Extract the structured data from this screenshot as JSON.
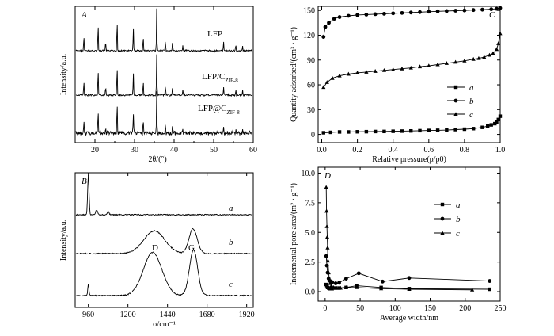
{
  "chart_data": [
    {
      "type": "line",
      "panel": "A",
      "xlabel": "2θ/(°)",
      "ylabel": "Intensity/a.u.",
      "xlim": [
        15,
        60
      ],
      "x_ticks": [
        "20",
        "30",
        "40",
        "50",
        "60"
      ],
      "series": [
        {
          "name": "LFP",
          "label_parts": [
            "LFP",
            ""
          ],
          "peaks": [
            [
              17.2,
              0.35
            ],
            [
              20.8,
              0.65
            ],
            [
              22.7,
              0.2
            ],
            [
              25.6,
              0.75
            ],
            [
              29.7,
              0.55
            ],
            [
              32.2,
              0.35
            ],
            [
              35.6,
              1.0
            ],
            [
              37.8,
              0.25
            ],
            [
              39.6,
              0.2
            ],
            [
              42.2,
              0.12
            ],
            [
              52.5,
              0.2
            ],
            [
              55.6,
              0.15
            ],
            [
              57.3,
              0.12
            ]
          ]
        },
        {
          "name": "LFP/C_ZIF-8",
          "label_parts": [
            "LFP/C",
            "ZIF-8"
          ],
          "peaks": [
            [
              17.2,
              0.35
            ],
            [
              20.8,
              0.65
            ],
            [
              22.7,
              0.2
            ],
            [
              25.6,
              0.75
            ],
            [
              29.7,
              0.55
            ],
            [
              32.2,
              0.35
            ],
            [
              35.6,
              1.0
            ],
            [
              37.8,
              0.25
            ],
            [
              39.6,
              0.2
            ],
            [
              42.2,
              0.12
            ],
            [
              52.5,
              0.2
            ],
            [
              55.6,
              0.15
            ],
            [
              57.3,
              0.12
            ]
          ]
        },
        {
          "name": "LFP@C_ZIF-8",
          "label_parts": [
            "LFP@C",
            "ZIF-8"
          ],
          "peaks": [
            [
              17.2,
              0.3
            ],
            [
              20.8,
              0.55
            ],
            [
              22.7,
              0.18
            ],
            [
              25.6,
              0.7
            ],
            [
              29.7,
              0.5
            ],
            [
              32.2,
              0.3
            ],
            [
              35.6,
              0.95
            ],
            [
              37.8,
              0.22
            ],
            [
              39.6,
              0.18
            ],
            [
              42.2,
              0.1
            ],
            [
              52.5,
              0.18
            ],
            [
              55.6,
              0.12
            ],
            [
              57.3,
              0.1
            ]
          ]
        }
      ]
    },
    {
      "type": "line",
      "panel": "B",
      "xlabel": "σ/cm⁻¹",
      "ylabel": "Intensity/a.u.",
      "xlim": [
        880,
        1960
      ],
      "x_ticks": [
        "960",
        "1200",
        "1440",
        "1680",
        "1920"
      ],
      "peak_labels": [
        "D",
        "G"
      ],
      "series": [
        {
          "name": "a",
          "peaks": [
            [
              960,
              1.0,
              6
            ],
            [
              1010,
              0.12,
              8
            ],
            [
              1080,
              0.08,
              8
            ]
          ]
        },
        {
          "name": "b",
          "peaks": [
            [
              1360,
              0.55,
              90
            ],
            [
              1595,
              0.6,
              35
            ]
          ]
        },
        {
          "name": "c",
          "peaks": [
            [
              960,
              0.22,
              5
            ],
            [
              1350,
              0.8,
              80
            ],
            [
              1598,
              0.85,
              35
            ]
          ]
        }
      ]
    },
    {
      "type": "line",
      "panel": "C",
      "xlabel": "Relative pressure(p/p0)",
      "ylabel": "Quantity adsorbed/(cm³ · g⁻¹)",
      "xlim": [
        0,
        1.0
      ],
      "ylim": [
        -10,
        155
      ],
      "x_ticks": [
        "0.0",
        "0.2",
        "0.4",
        "0.6",
        "0.8",
        "1.0"
      ],
      "y_ticks": [
        "0",
        "30",
        "60",
        "90",
        "120",
        "150"
      ],
      "series": [
        {
          "name": "a",
          "marker": "square",
          "x": [
            0.01,
            0.05,
            0.1,
            0.15,
            0.2,
            0.25,
            0.3,
            0.35,
            0.4,
            0.45,
            0.5,
            0.55,
            0.6,
            0.65,
            0.7,
            0.75,
            0.8,
            0.85,
            0.9,
            0.93,
            0.95,
            0.97,
            0.98,
            0.99,
            1.0
          ],
          "y": [
            2,
            2.5,
            3,
            3,
            3.2,
            3.3,
            3.5,
            3.6,
            3.8,
            4,
            4.2,
            4.5,
            4.8,
            5,
            5.3,
            5.8,
            6.3,
            7,
            8.5,
            10,
            11.5,
            13,
            15,
            18,
            22
          ]
        },
        {
          "name": "b",
          "marker": "circle",
          "x": [
            0.01,
            0.02,
            0.04,
            0.07,
            0.1,
            0.15,
            0.2,
            0.25,
            0.3,
            0.35,
            0.4,
            0.45,
            0.5,
            0.55,
            0.6,
            0.65,
            0.7,
            0.75,
            0.8,
            0.85,
            0.9,
            0.95,
            0.98,
            1.0
          ],
          "y": [
            118,
            130,
            135,
            140,
            142,
            143.5,
            144.5,
            145,
            145.5,
            146,
            146.5,
            147,
            147.5,
            148,
            148.5,
            149,
            149.3,
            149.7,
            150,
            150.5,
            151,
            151.5,
            152,
            153
          ]
        },
        {
          "name": "c",
          "marker": "triangle",
          "x": [
            0.01,
            0.03,
            0.06,
            0.1,
            0.15,
            0.2,
            0.25,
            0.3,
            0.35,
            0.4,
            0.45,
            0.5,
            0.55,
            0.6,
            0.65,
            0.7,
            0.75,
            0.8,
            0.85,
            0.88,
            0.91,
            0.94,
            0.96,
            0.98,
            0.99,
            1.0
          ],
          "y": [
            57,
            63,
            68,
            71,
            73,
            74.5,
            75.5,
            76.5,
            77.5,
            78.5,
            79.5,
            80.5,
            82,
            83,
            84.5,
            86,
            87.5,
            89,
            91,
            92,
            93.5,
            96,
            98,
            103,
            110,
            122
          ]
        }
      ]
    },
    {
      "type": "line",
      "panel": "D",
      "xlabel": "Average width/nm",
      "ylabel": "Incremental pore area/(m² · g⁻¹)",
      "xlim": [
        -10,
        250
      ],
      "ylim": [
        -0.8,
        10.5
      ],
      "x_ticks": [
        "0",
        "50",
        "100",
        "150",
        "200",
        "250"
      ],
      "y_ticks": [
        "0.0",
        "2.5",
        "5.0",
        "7.5",
        "10.0"
      ],
      "series": [
        {
          "name": "a",
          "marker": "square",
          "x": [
            1.5,
            2.5,
            3.5,
            5,
            7,
            10,
            15,
            20,
            30,
            45,
            80,
            120,
            235
          ],
          "y": [
            0.6,
            0.5,
            0.35,
            0.3,
            0.25,
            0.25,
            0.3,
            0.3,
            0.35,
            0.5,
            0.35,
            0.25,
            0.2
          ]
        },
        {
          "name": "b",
          "marker": "circle",
          "x": [
            1.5,
            2.5,
            3.5,
            5,
            7,
            10,
            15,
            20,
            30,
            48,
            82,
            120,
            235
          ],
          "y": [
            3.0,
            2.2,
            1.6,
            1.1,
            0.9,
            0.8,
            0.7,
            0.75,
            1.1,
            1.55,
            0.85,
            1.15,
            0.9
          ]
        },
        {
          "name": "c",
          "marker": "triangle",
          "x": [
            1.5,
            2,
            2.5,
            3,
            3.5,
            4,
            5,
            6,
            7,
            9,
            12,
            16,
            22,
            30,
            45,
            80,
            120,
            210
          ],
          "y": [
            8.8,
            6.8,
            5.5,
            4.6,
            3.7,
            2.6,
            1.6,
            1.0,
            0.7,
            0.5,
            0.35,
            0.3,
            0.3,
            0.35,
            0.35,
            0.25,
            0.2,
            0.15
          ]
        }
      ]
    }
  ]
}
